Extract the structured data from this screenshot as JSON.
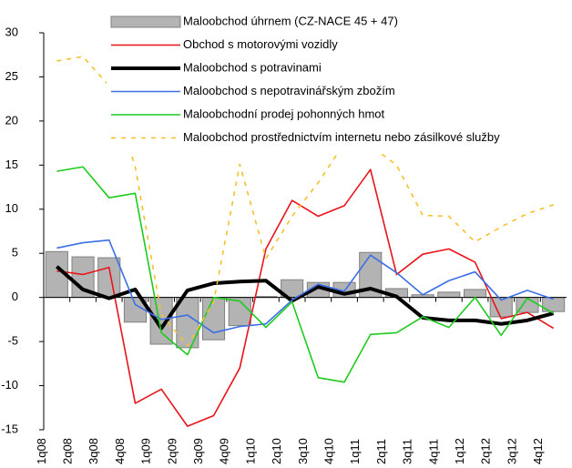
{
  "chart_data": {
    "type": "bar-line",
    "categories": [
      "1q08",
      "2q08",
      "3q08",
      "4q08",
      "1q09",
      "2q09",
      "3q09",
      "4q09",
      "1q10",
      "2q10",
      "3q10",
      "4q10",
      "1q11",
      "2q11",
      "3q11",
      "4q11",
      "1q12",
      "2q12",
      "3q12",
      "4q12"
    ],
    "ylim": [
      -15,
      30
    ],
    "yticks": [
      -15,
      -10,
      -5,
      0,
      5,
      10,
      15,
      20,
      25,
      30
    ],
    "legend": "upper right",
    "series": [
      {
        "name": "Maloobchod úhrnem (CZ-NACE 45 + 47)",
        "type": "bar",
        "color": "#b3b3b3",
        "values": [
          5.2,
          4.6,
          4.5,
          -2.8,
          -5.3,
          -5.7,
          -4.8,
          -3.2,
          0.1,
          2.0,
          1.7,
          1.7,
          5.1,
          1.0,
          0.3,
          0.6,
          0.9,
          -2.2,
          -1.7,
          -1.6
        ]
      },
      {
        "name": "Obchod s motorovými vozidly",
        "type": "line",
        "color": "#e8141a",
        "values": [
          3.0,
          2.6,
          3.4,
          -12.0,
          -10.4,
          -14.6,
          -13.4,
          -8.0,
          5.5,
          11.0,
          9.2,
          10.4,
          14.5,
          2.6,
          4.9,
          5.5,
          4.0,
          -2.4,
          -1.7,
          -3.5
        ]
      },
      {
        "name": "Maloobchod s potravinami",
        "type": "line",
        "color": "#000000",
        "width": 4,
        "values": [
          3.5,
          0.9,
          -0.1,
          0.9,
          -3.5,
          0.8,
          1.6,
          1.8,
          1.9,
          -0.4,
          1.2,
          0.4,
          1.0,
          0.1,
          -2.3,
          -2.6,
          -2.6,
          -3.0,
          -2.6,
          -1.8
        ]
      },
      {
        "name": "Maloobchod s nepotravinářským zbožím",
        "type": "line",
        "color": "#3c6fe6",
        "values": [
          5.6,
          6.2,
          6.5,
          -0.8,
          -2.5,
          -2.0,
          -4.0,
          -3.3,
          -3.0,
          -0.3,
          1.5,
          0.7,
          4.8,
          2.8,
          0.3,
          1.9,
          2.9,
          -0.3,
          0.8,
          -0.2
        ]
      },
      {
        "name": "Maloobchodní prodej pohonných hmot",
        "type": "line",
        "color": "#1ecb1e",
        "values": [
          14.3,
          14.8,
          11.3,
          11.8,
          -4.0,
          -6.5,
          0.0,
          -0.4,
          -3.4,
          -0.5,
          -9.1,
          -9.6,
          -4.2,
          -4.0,
          -2.2,
          -3.4,
          0.0,
          -4.3,
          -0.1,
          -1.8
        ]
      },
      {
        "name": "Maloobchod prostřednictvím internetu nebo zásilkové služby",
        "type": "line",
        "color": "#f5c12a",
        "dashed": true,
        "values": [
          26.8,
          27.3,
          24.0,
          14.8,
          -1.9,
          -5.5,
          -0.5,
          15.1,
          4.4,
          9.2,
          13.0,
          17.5,
          17.2,
          15.0,
          9.3,
          9.2,
          6.3,
          8.0,
          9.5,
          10.5
        ]
      }
    ]
  }
}
